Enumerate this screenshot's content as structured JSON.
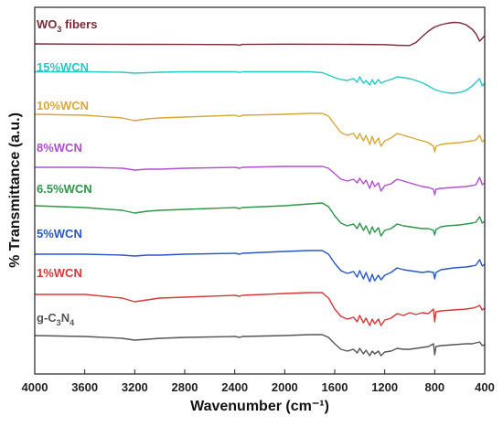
{
  "chart_data": {
    "type": "line",
    "xlabel": "Wavenumber (cm⁻¹)",
    "ylabel": "% Transmittance (a.u.)",
    "xlim": [
      4000,
      400
    ],
    "x_reversed": true,
    "y_ticks_shown": false,
    "grid": false,
    "x_ticks": [
      "4000",
      "3600",
      "3200",
      "2800",
      "2400",
      "2000",
      "1600",
      "1200",
      "800",
      "400"
    ],
    "series": [
      {
        "name": "WO3 fibers",
        "label_parts": [
          {
            "text": "WO",
            "sub": false
          },
          {
            "text": "3",
            "sub": true
          },
          {
            "text": " fibers",
            "sub": false
          }
        ],
        "color": "#7a2c3a",
        "x": [
          4000,
          3600,
          3200,
          2800,
          2400,
          2360,
          2340,
          2000,
          1600,
          1200,
          1100,
          1000,
          950,
          900,
          850,
          800,
          750,
          700,
          650,
          600,
          550,
          500,
          470,
          440,
          420,
          400
        ],
        "y": [
          40,
          40.3,
          40.5,
          40.6,
          40.8,
          41.4,
          40.6,
          40.3,
          40.4,
          40.8,
          41.5,
          41.8,
          38.5,
          32,
          26,
          21.5,
          19,
          17.5,
          16.5,
          16.8,
          19,
          24,
          29,
          37,
          34,
          31
        ]
      },
      {
        "name": "15%WCN",
        "color": "#28c8c8",
        "x": [
          4000,
          3600,
          3300,
          3200,
          3100,
          3000,
          2800,
          2400,
          2360,
          2340,
          2000,
          1800,
          1700,
          1650,
          1600,
          1550,
          1500,
          1450,
          1420,
          1400,
          1370,
          1350,
          1320,
          1300,
          1280,
          1250,
          1230,
          1200,
          1150,
          1100,
          1050,
          1000,
          950,
          900,
          850,
          800,
          750,
          700,
          650,
          600,
          550,
          500,
          470,
          440,
          420,
          400
        ],
        "y": [
          70.5,
          70.5,
          71,
          72,
          71.5,
          71,
          70.5,
          70.5,
          71.2,
          70.5,
          70.5,
          70.5,
          71.5,
          74,
          77,
          79,
          80,
          78,
          82,
          76,
          83,
          80,
          85,
          79,
          84,
          79,
          83,
          81,
          79,
          76,
          77,
          78,
          80,
          82.5,
          86,
          90,
          92,
          93.5,
          94,
          93,
          91,
          86,
          82,
          78,
          86,
          83
        ]
      },
      {
        "name": "10%WCN",
        "color": "#d8a838",
        "x": [
          4000,
          3600,
          3300,
          3200,
          3100,
          3000,
          2800,
          2400,
          2360,
          2340,
          2000,
          1800,
          1700,
          1650,
          1600,
          1550,
          1500,
          1450,
          1420,
          1400,
          1370,
          1350,
          1320,
          1300,
          1280,
          1250,
          1230,
          1200,
          1150,
          1100,
          1050,
          1000,
          950,
          900,
          850,
          810,
          800,
          790,
          750,
          700,
          650,
          600,
          550,
          500,
          470,
          440,
          420,
          400
        ],
        "y": [
          117,
          118,
          121,
          124,
          122,
          121,
          120,
          118,
          119.5,
          118,
          117,
          116,
          116,
          119,
          128,
          137,
          140,
          138,
          144,
          138,
          146,
          140,
          150,
          141,
          149,
          143,
          152,
          146,
          143,
          138,
          140,
          142,
          144,
          146,
          148,
          152,
          158,
          152,
          150,
          149,
          148.5,
          148,
          147,
          146,
          145,
          140,
          147,
          145
        ]
      },
      {
        "name": "8%WCN",
        "color": "#b050d0",
        "x": [
          4000,
          3600,
          3300,
          3200,
          3100,
          3000,
          2800,
          2400,
          2360,
          2340,
          2000,
          1800,
          1700,
          1650,
          1600,
          1550,
          1500,
          1450,
          1420,
          1400,
          1370,
          1350,
          1320,
          1300,
          1280,
          1250,
          1230,
          1200,
          1150,
          1100,
          1050,
          1000,
          950,
          900,
          850,
          810,
          800,
          790,
          750,
          700,
          650,
          600,
          550,
          500,
          470,
          440,
          420,
          400
        ],
        "y": [
          175,
          175,
          176,
          178,
          177,
          177,
          176,
          175,
          176,
          175,
          174,
          174,
          174,
          176,
          182,
          188,
          190,
          188,
          192,
          187,
          193,
          189,
          198,
          190,
          196,
          192,
          201,
          195,
          193,
          188,
          190,
          192,
          194,
          196,
          197,
          199,
          205,
          199,
          198,
          197.5,
          197,
          196.5,
          196,
          195,
          194,
          186,
          194,
          192
        ]
      },
      {
        "name": "6.5%WCN",
        "color": "#2e9648",
        "x": [
          4000,
          3600,
          3300,
          3200,
          3100,
          3000,
          2800,
          2400,
          2360,
          2340,
          2000,
          1800,
          1700,
          1650,
          1600,
          1550,
          1500,
          1450,
          1420,
          1400,
          1370,
          1350,
          1320,
          1300,
          1280,
          1250,
          1230,
          1200,
          1150,
          1100,
          1050,
          1000,
          950,
          900,
          850,
          810,
          800,
          790,
          750,
          700,
          650,
          600,
          550,
          500,
          470,
          440,
          420,
          400
        ],
        "y": [
          217,
          219,
          222,
          225,
          223,
          222,
          221,
          219,
          220,
          219,
          217,
          215,
          214,
          218,
          228,
          236,
          239,
          237,
          242,
          236,
          244,
          239,
          248,
          240,
          246,
          241,
          250,
          244,
          242,
          237,
          239,
          240,
          241,
          242,
          242,
          244,
          249,
          243,
          240,
          239,
          238.5,
          238,
          237,
          236,
          235,
          229,
          236,
          234
        ]
      },
      {
        "name": "5%WCN",
        "color": "#2858c8",
        "x": [
          4000,
          3600,
          3300,
          3200,
          3100,
          3000,
          2800,
          2400,
          2360,
          2340,
          2000,
          1800,
          1700,
          1650,
          1600,
          1550,
          1500,
          1450,
          1420,
          1400,
          1370,
          1350,
          1320,
          1300,
          1280,
          1250,
          1230,
          1200,
          1150,
          1100,
          1050,
          1000,
          950,
          900,
          850,
          810,
          800,
          790,
          750,
          700,
          650,
          600,
          550,
          500,
          470,
          440,
          420,
          400
        ],
        "y": [
          270,
          270,
          271,
          272,
          271,
          271,
          270,
          269,
          270,
          269,
          267,
          266,
          266,
          270,
          280,
          288,
          291,
          289,
          295,
          288,
          297,
          290,
          300,
          292,
          299,
          293,
          298,
          293,
          290,
          285,
          287,
          288,
          289,
          290,
          289,
          290,
          297,
          290,
          287,
          286,
          285,
          284.5,
          284,
          283,
          282,
          276,
          283,
          281
        ]
      },
      {
        "name": "1%WCN",
        "color": "#d83838",
        "x": [
          4000,
          3600,
          3300,
          3200,
          3100,
          3000,
          2800,
          2400,
          2360,
          2340,
          2000,
          1800,
          1700,
          1650,
          1600,
          1550,
          1500,
          1450,
          1420,
          1400,
          1370,
          1350,
          1320,
          1300,
          1280,
          1250,
          1230,
          1200,
          1150,
          1100,
          1050,
          1000,
          950,
          900,
          850,
          810,
          800,
          790,
          750,
          700,
          650,
          600,
          550,
          500,
          470,
          440,
          420,
          400
        ],
        "y": [
          314,
          314,
          318,
          322,
          320,
          318,
          317,
          315,
          316,
          315,
          313,
          312,
          312,
          318,
          330,
          338,
          341,
          339,
          344,
          337,
          345,
          340,
          348,
          341,
          346,
          341,
          348,
          342,
          340,
          335,
          337,
          334,
          336,
          334,
          335,
          330,
          344,
          333,
          332,
          331.5,
          331,
          330.5,
          330,
          329,
          328,
          326,
          331,
          329
        ]
      },
      {
        "name": "g-C3N4",
        "label_parts": [
          {
            "text": "g-C",
            "sub": false
          },
          {
            "text": "3",
            "sub": true
          },
          {
            "text": "N",
            "sub": false
          },
          {
            "text": "4",
            "sub": true
          }
        ],
        "color": "#555555",
        "x": [
          4000,
          3600,
          3300,
          3200,
          3100,
          3000,
          2800,
          2400,
          2360,
          2340,
          2000,
          1800,
          1700,
          1650,
          1600,
          1550,
          1500,
          1450,
          1420,
          1400,
          1370,
          1350,
          1320,
          1300,
          1280,
          1250,
          1230,
          1200,
          1150,
          1100,
          1050,
          1000,
          950,
          900,
          850,
          810,
          800,
          790,
          750,
          700,
          650,
          600,
          550,
          500,
          470,
          440,
          420,
          400
        ],
        "y": [
          359,
          360,
          362,
          364,
          363,
          362,
          361,
          360,
          361,
          360,
          359,
          358,
          358,
          361,
          368,
          374,
          376,
          374,
          378,
          373,
          379,
          375,
          381,
          376,
          379,
          376,
          381,
          377,
          376,
          373,
          374,
          374,
          373,
          372,
          371,
          368,
          380,
          371,
          370,
          369.5,
          369,
          368.5,
          368,
          368,
          367,
          366,
          370,
          369
        ]
      }
    ]
  }
}
